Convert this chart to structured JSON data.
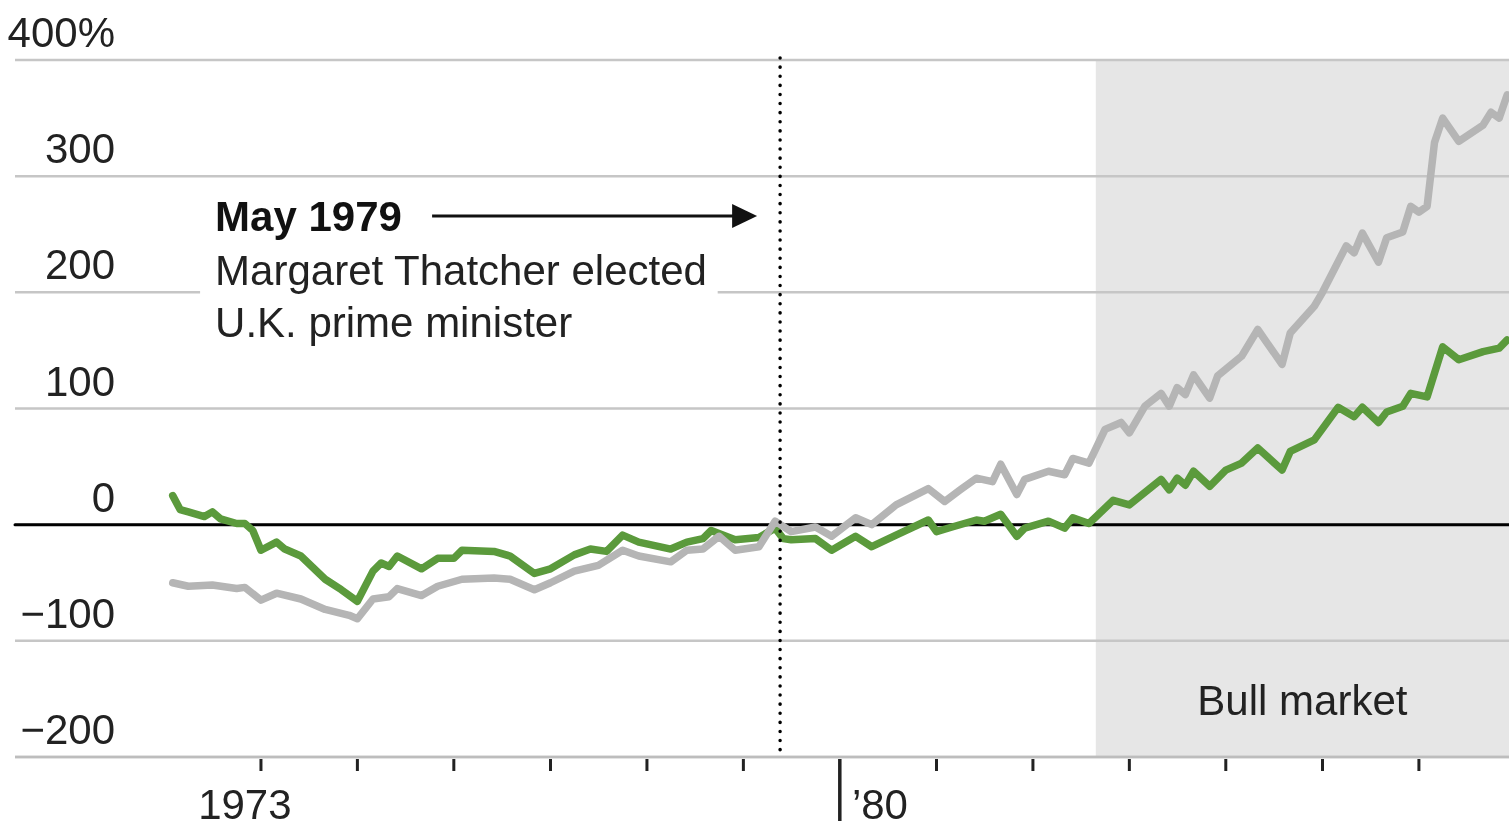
{
  "chart_data": {
    "type": "line",
    "series": [
      {
        "color": "#5b9a3c",
        "x": [
          "1973-02",
          "1973-03",
          "1973-04",
          "1973-06",
          "1973-07",
          "1973-08",
          "1973-10",
          "1973-11",
          "1973-12",
          "1974-01",
          "1974-03",
          "1974-04",
          "1974-06",
          "1974-09",
          "1974-11",
          "1975-01",
          "1975-03",
          "1975-04",
          "1975-05",
          "1975-06",
          "1975-09",
          "1975-11",
          "1976-01",
          "1976-02",
          "1976-06",
          "1976-08",
          "1976-11",
          "1977-01",
          "1977-04",
          "1977-06",
          "1977-08",
          "1977-10",
          "1977-12",
          "1978-04",
          "1978-06",
          "1978-08",
          "1978-09",
          "1978-12",
          "1979-03",
          "1979-05",
          "1979-06",
          "1979-07",
          "1979-10",
          "1979-12",
          "1980-03",
          "1980-05",
          "1980-08",
          "1980-12",
          "1981-01",
          "1981-03",
          "1981-06",
          "1981-07",
          "1981-09",
          "1981-11",
          "1981-12",
          "1982-03",
          "1982-05",
          "1982-06",
          "1982-08",
          "1982-11",
          "1983-01",
          "1983-05",
          "1983-06",
          "1983-07",
          "1983-08",
          "1983-09",
          "1983-11",
          "1984-01",
          "1984-03",
          "1984-05",
          "1984-08",
          "1984-09",
          "1984-12",
          "1985-03",
          "1985-05",
          "1985-06",
          "1985-08",
          "1985-09",
          "1985-11",
          "1985-12",
          "1986-02",
          "1986-04",
          "1986-06",
          "1986-09",
          "1986-11",
          "1986-12"
        ],
        "values": [
          25,
          13,
          11,
          7,
          11,
          5,
          1,
          1,
          -5,
          -22,
          -15,
          -21,
          -27,
          -47,
          -56,
          -66,
          -40,
          -33,
          -36,
          -27,
          -38,
          -29,
          -29,
          -22,
          -23,
          -27,
          -42,
          -38,
          -26,
          -21,
          -23,
          -9,
          -15,
          -21,
          -15,
          -12,
          -5,
          -13,
          -11,
          -3,
          -12,
          -13,
          -12,
          -22,
          -10,
          -19,
          -9,
          4,
          -6,
          -2,
          4,
          3,
          9,
          -10,
          -3,
          3,
          -3,
          6,
          1,
          21,
          17,
          39,
          30,
          40,
          34,
          46,
          33,
          47,
          53,
          66,
          47,
          63,
          73,
          101,
          93,
          101,
          88,
          97,
          102,
          113,
          110,
          153,
          142,
          149,
          152,
          159
        ]
      },
      {
        "color": "#b5b5b5",
        "x": [
          "1973-02",
          "1973-04",
          "1973-07",
          "1973-10",
          "1973-11",
          "1974-01",
          "1974-03",
          "1974-06",
          "1974-09",
          "1974-12",
          "1975-01",
          "1975-03",
          "1975-05",
          "1975-06",
          "1975-09",
          "1975-11",
          "1976-02",
          "1976-06",
          "1976-08",
          "1976-11",
          "1977-01",
          "1977-04",
          "1977-07",
          "1977-10",
          "1977-12",
          "1978-04",
          "1978-06",
          "1978-08",
          "1978-10",
          "1978-12",
          "1979-03",
          "1979-05",
          "1979-07",
          "1979-10",
          "1979-12",
          "1980-03",
          "1980-05",
          "1980-08",
          "1980-12",
          "1981-02",
          "1981-04",
          "1981-06",
          "1981-08",
          "1981-09",
          "1981-11",
          "1981-12",
          "1982-03",
          "1982-05",
          "1982-06",
          "1982-08",
          "1982-10",
          "1982-12",
          "1983-01",
          "1983-03",
          "1983-05",
          "1983-06",
          "1983-07",
          "1983-08",
          "1983-09",
          "1983-11",
          "1983-12",
          "1984-03",
          "1984-05",
          "1984-08",
          "1984-09",
          "1984-12",
          "1985-01",
          "1985-04",
          "1985-05",
          "1985-06",
          "1985-08",
          "1985-09",
          "1985-11",
          "1985-12",
          "1986-01",
          "1986-02",
          "1986-03",
          "1986-04",
          "1986-06",
          "1986-09",
          "1986-10",
          "1986-11",
          "1986-12"
        ],
        "values": [
          -50,
          -53,
          -52,
          -55,
          -54,
          -65,
          -59,
          -64,
          -73,
          -78,
          -81,
          -64,
          -62,
          -55,
          -61,
          -53,
          -47,
          -46,
          -47,
          -56,
          -50,
          -40,
          -35,
          -22,
          -27,
          -32,
          -22,
          -21,
          -10,
          -22,
          -19,
          3,
          -6,
          -2,
          -10,
          6,
          0,
          17,
          31,
          20,
          30,
          40,
          37,
          52,
          26,
          39,
          46,
          43,
          57,
          53,
          82,
          88,
          79,
          102,
          113,
          102,
          118,
          112,
          129,
          109,
          128,
          145,
          168,
          138,
          165,
          188,
          200,
          240,
          234,
          251,
          226,
          247,
          252,
          274,
          269,
          274,
          329,
          350,
          330,
          344,
          355,
          350,
          370
        ]
      }
    ],
    "xlim": [
      "1971-06-15",
      "1986-12-08"
    ],
    "xticks": [
      {
        "value": "1973-11",
        "label": "1973"
      },
      {
        "value": "1974-01",
        "label": null
      },
      {
        "value": "1975-01",
        "label": null
      },
      {
        "value": "1976-01",
        "label": null
      },
      {
        "value": "1977-01",
        "label": null
      },
      {
        "value": "1978-01",
        "label": null
      },
      {
        "value": "1979-01",
        "label": null
      },
      {
        "value": "1980-01",
        "label": null
      },
      {
        "value": "1980-06",
        "label": "’80"
      },
      {
        "value": "1981-01",
        "label": null
      },
      {
        "value": "1982-01",
        "label": null
      },
      {
        "value": "1983-01",
        "label": null
      },
      {
        "value": "1984-01",
        "label": null
      },
      {
        "value": "1985-01",
        "label": null
      },
      {
        "value": "1986-01",
        "label": null
      }
    ],
    "ylim": [
      -200,
      400
    ],
    "yticks": [
      {
        "value": 400,
        "label": "400%"
      },
      300,
      200,
      100,
      0,
      {
        "value": -100,
        "label": "−100"
      },
      {
        "value": -200,
        "label": "−200"
      }
    ],
    "grid": "y",
    "ref_lines": [
      {
        "axis": "y",
        "value": 0,
        "color": "#000000"
      },
      {
        "axis": "x",
        "value": "1979-05-20",
        "label": "May 1979",
        "color": "#000000",
        "line_style": "dotted"
      }
    ],
    "bands": [
      {
        "axis": "x",
        "from": "1982-08-27",
        "to": "1986-12-08",
        "label": "Bull market",
        "color": "#e6e6e6"
      }
    ],
    "annotations": [
      "Margaret Thatcher elected U.K. prime minister"
    ]
  }
}
